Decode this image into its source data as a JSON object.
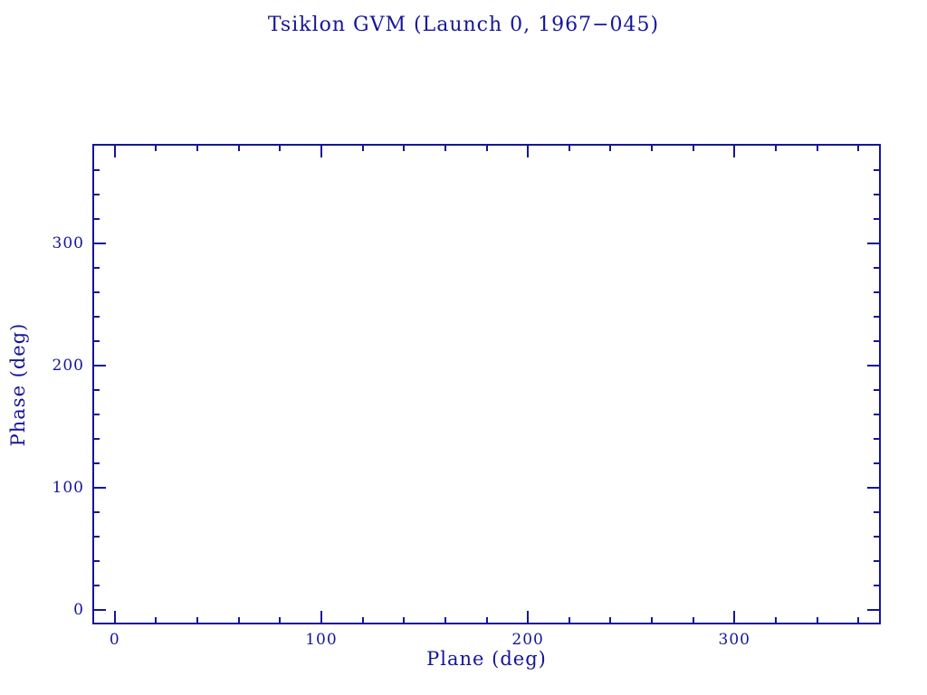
{
  "colors": {
    "accent": "#15159a",
    "background": "#ffffff"
  },
  "chart_data": {
    "type": "scatter",
    "title": "Tsiklon GVM (Launch 0, 1967−045)",
    "xlabel": "Plane (deg)",
    "ylabel": "Phase (deg)",
    "xlim": [
      -10,
      370
    ],
    "ylim": [
      -10,
      380
    ],
    "xticks": [
      0,
      100,
      200,
      300
    ],
    "yticks": [
      0,
      100,
      200,
      300
    ],
    "major_tick_step": 100,
    "minor_tick_step": 20,
    "grid": false,
    "legend": null,
    "points": []
  }
}
